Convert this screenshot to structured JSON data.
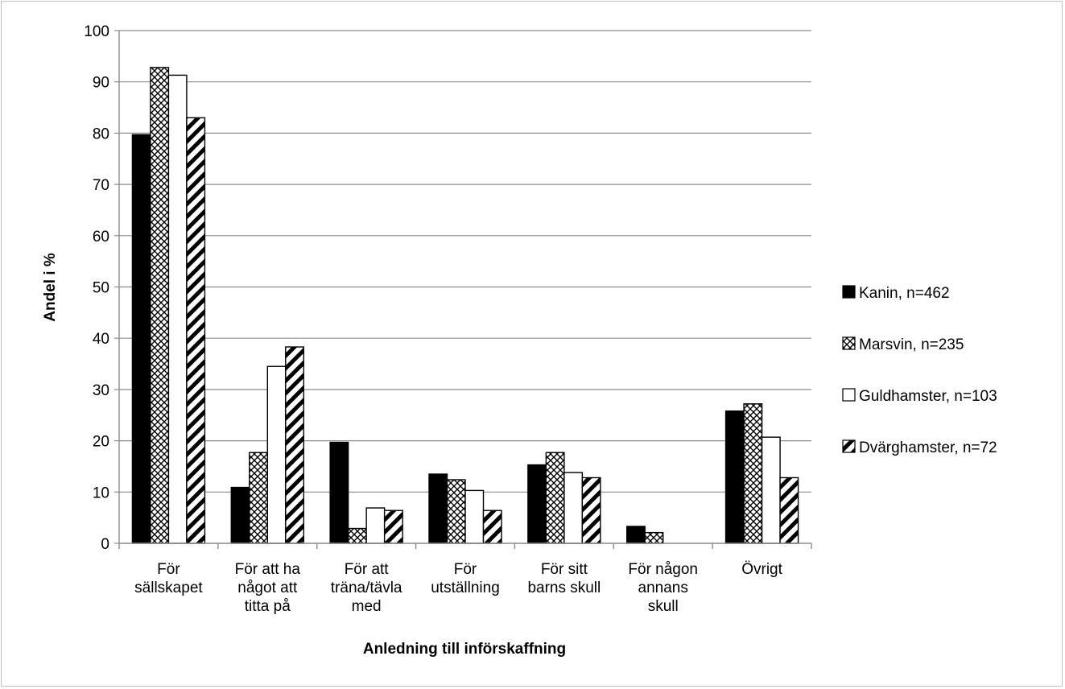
{
  "chart_data": {
    "type": "bar",
    "title": "",
    "xlabel": "Anledning till införskaffning",
    "ylabel": "Andel i %",
    "ylim": [
      0,
      100
    ],
    "yticks": [
      0,
      10,
      20,
      30,
      40,
      50,
      60,
      70,
      80,
      90,
      100
    ],
    "grid": true,
    "legend_position": "right",
    "categories": [
      [
        "För",
        "sällskapet"
      ],
      [
        "För att ha",
        "något att",
        "titta på"
      ],
      [
        "För att",
        "träna/tävla",
        "med"
      ],
      [
        "För",
        "utställning"
      ],
      [
        "För sitt",
        "barns skull"
      ],
      [
        "För någon",
        "annans",
        "skull"
      ],
      [
        "Övrigt"
      ]
    ],
    "series": [
      {
        "name": "Kanin, n=462",
        "pattern": "solid",
        "color": "#000000",
        "values": [
          79.7,
          10.9,
          19.7,
          13.5,
          15.3,
          3.3,
          25.8
        ]
      },
      {
        "name": "Marsvin, n=235",
        "pattern": "crosshatch",
        "color": "#000000",
        "values": [
          92.8,
          17.7,
          2.9,
          12.4,
          17.7,
          2.1,
          27.2
        ]
      },
      {
        "name": "Guldhamster, n=103",
        "pattern": "white",
        "color": "#000000",
        "values": [
          91.3,
          34.5,
          6.9,
          10.3,
          13.8,
          0,
          20.7
        ]
      },
      {
        "name": "Dvärghamster, n=72",
        "pattern": "diagonal",
        "color": "#000000",
        "values": [
          83.0,
          38.3,
          6.4,
          6.4,
          12.8,
          0,
          12.8
        ]
      }
    ]
  }
}
